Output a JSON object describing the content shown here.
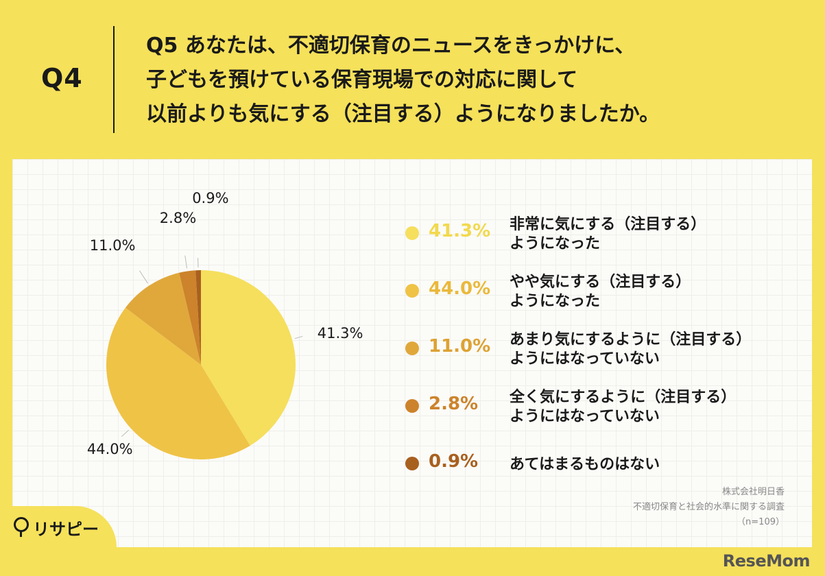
{
  "header": {
    "number": "Q4",
    "question_lines": [
      "Q5 あなたは、不適切保育のニュースをきっかけに、",
      "子どもを預けている保育現場での対応に関して",
      "以前よりも気にする（注目する）ようになりましたか。"
    ]
  },
  "chart_data": {
    "type": "pie",
    "start_angle_deg": 0,
    "direction": "clockwise",
    "slices": [
      {
        "label_lines": [
          "非常に気にする（注目する）",
          "ようになった"
        ],
        "value": 41.3,
        "value_label": "41.3%",
        "color": "#F5DF5D"
      },
      {
        "label_lines": [
          "やや気にする（注目する）",
          "ようになった"
        ],
        "value": 44.0,
        "value_label": "44.0%",
        "color": "#EFC346"
      },
      {
        "label_lines": [
          "あまり気にするように（注目する）",
          "ようにはなっていない"
        ],
        "value": 11.0,
        "value_label": "11.0%",
        "color": "#E0A83B"
      },
      {
        "label_lines": [
          "全く気にするように（注目する）",
          "ようにはなっていない"
        ],
        "value": 2.8,
        "value_label": "2.8%",
        "color": "#CC832B"
      },
      {
        "label_lines": [
          "あてはまるものはない"
        ],
        "value": 0.9,
        "value_label": "0.9%",
        "color": "#A8601F"
      }
    ]
  },
  "source": {
    "company": "株式会社明日香",
    "survey": "不適切保育と社会的水準に関する調査",
    "n": "（n=109）"
  },
  "logo": {
    "text": "リサピー"
  },
  "brand": {
    "text": "ReseMom"
  }
}
